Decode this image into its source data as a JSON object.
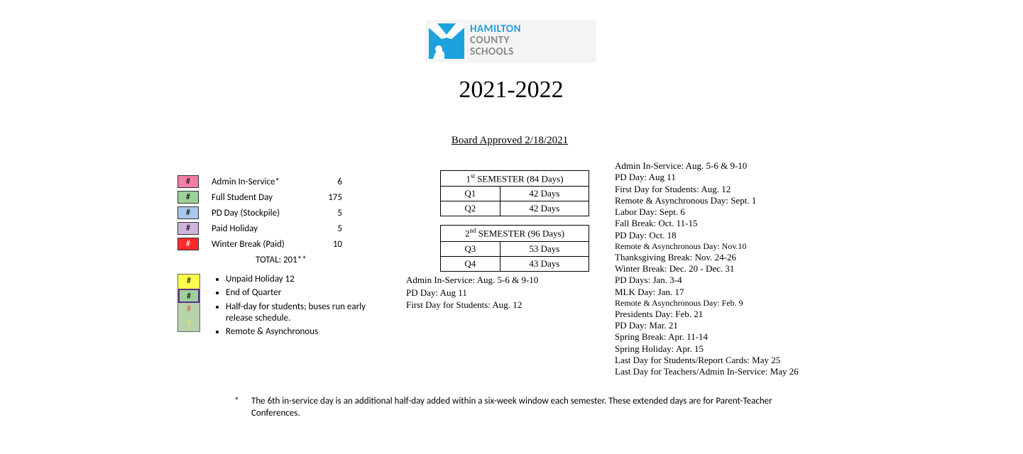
{
  "logo": {
    "line1": "HAMILTON",
    "line2": "COUNTY",
    "line3": "SCHOOLS",
    "brand_color": "#1ea1dd",
    "gray": "#8a8a8a",
    "bg": "#f4f4f4"
  },
  "title_year": "2021-2022",
  "approved": "Board Approved 2/18/2021",
  "legend_paid": {
    "rows": [
      {
        "swatch_bg": "#f27ea8",
        "swatch_text": "#",
        "label": "Admin In-Service*",
        "value": "6"
      },
      {
        "swatch_bg": "#9ed09a",
        "swatch_text": "#",
        "label": "Full Student Day",
        "value": "175"
      },
      {
        "swatch_bg": "#a9c7ea",
        "swatch_text": "#",
        "label": "PD Day (Stockpile)",
        "value": "5"
      },
      {
        "swatch_bg": "#cfb3db",
        "swatch_text": "#",
        "label": "Paid Holiday",
        "value": "5"
      },
      {
        "swatch_bg": "#ff2a2a",
        "swatch_text": "#",
        "swatch_text_color": "#ffffff",
        "label": "Winter Break (Paid)",
        "value": "10"
      }
    ],
    "total_label": "TOTAL:  201**"
  },
  "legend_unpaid": {
    "swatches": [
      {
        "bg": "#ffff4d",
        "text": "#",
        "text_color": "#000000"
      },
      {
        "bg": "#9ed09a",
        "text": "#",
        "text_color": "#000000",
        "bold_purple_border": true
      },
      {
        "bg": "#b9d3a8",
        "text": "#",
        "text_color": "#e05a5a"
      },
      {
        "bg": "#b9d3a8",
        "text": "#",
        "text_color": "#e6e06a"
      }
    ],
    "bullets": [
      "Unpaid Holiday 12",
      "End of Quarter",
      "Half-day for students; buses run early release schedule.",
      "Remote & Asynchronous"
    ]
  },
  "semesters": [
    {
      "header_html": "1<sup>st</sup> SEMESTER (84 Days)",
      "rows": [
        {
          "q": "Q1",
          "days": "42 Days"
        },
        {
          "q": "Q2",
          "days": "42 Days"
        }
      ]
    },
    {
      "header_html": "2<sup>nd</sup> SEMESTER (96 Days)",
      "rows": [
        {
          "q": "Q3",
          "days": "53 Days"
        },
        {
          "q": "Q4",
          "days": "43 Days"
        }
      ]
    }
  ],
  "center_notes": [
    "Admin In-Service: Aug. 5-6 & 9-10",
    "PD Day: Aug 11",
    "First Day for Students: Aug. 12"
  ],
  "key_dates": [
    {
      "t": "Admin In-Service: Aug. 5-6 & 9-10"
    },
    {
      "t": "PD Day: Aug 11"
    },
    {
      "t": "First Day for Students: Aug. 12"
    },
    {
      "t": "Remote & Asynchronous Day: Sept. 1"
    },
    {
      "t": "Labor Day: Sept. 6"
    },
    {
      "t": "Fall Break: Oct. 11-15"
    },
    {
      "t": "PD Day: Oct. 18"
    },
    {
      "t": "Remote & Asynchronous Day: Nov.10",
      "sm": true
    },
    {
      "t": "Thanksgiving Break: Nov. 24-26"
    },
    {
      "t": "Winter Break: Dec. 20 - Dec. 31"
    },
    {
      "t": "PD Days: Jan. 3-4"
    },
    {
      "t": "MLK Day: Jan. 17"
    },
    {
      "t": "Remote & Asynchronous Day: Feb. 9",
      "sm": true
    },
    {
      "t": "Presidents Day: Feb. 21"
    },
    {
      "t": "PD Day: Mar. 21"
    },
    {
      "t": "Spring Break: Apr. 11-14"
    },
    {
      "t": "Spring Holiday:  Apr. 15"
    },
    {
      "t": "Last Day for Students/Report Cards: May 25"
    },
    {
      "t": "Last Day for Teachers/Admin In-Service: May 26"
    }
  ],
  "footnote": {
    "marker": "*",
    "text": "The 6th in-service day is an additional half-day added within a six-week window each semester. These extended days are for Parent-Teacher Conferences."
  }
}
